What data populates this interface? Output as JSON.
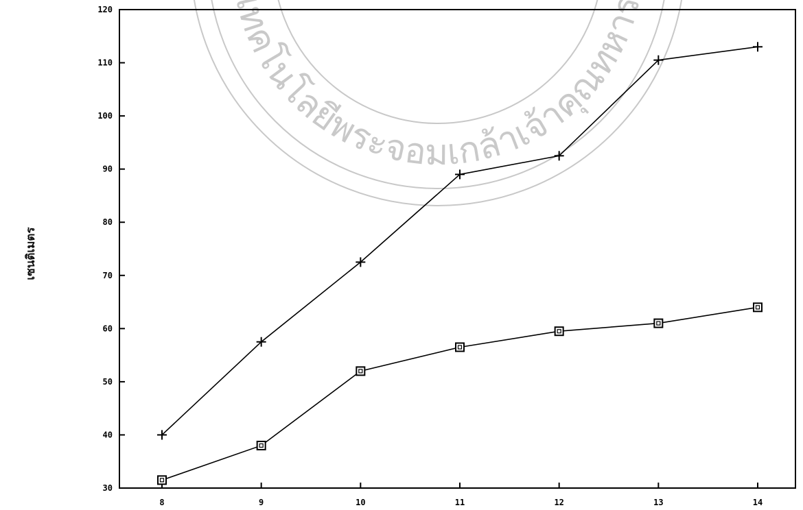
{
  "chart_data": {
    "type": "line",
    "title": "",
    "xlabel": "",
    "ylabel": "เซนติเมตร",
    "x": [
      8,
      9,
      10,
      11,
      12,
      13,
      14
    ],
    "x_tick_labels": [
      "8",
      "9",
      "10",
      "11",
      "12",
      "13",
      "14"
    ],
    "ylim": [
      30,
      120
    ],
    "y_ticks": [
      30,
      40,
      50,
      60,
      70,
      80,
      90,
      100,
      110,
      120
    ],
    "y_tick_labels": [
      "30",
      "40",
      "50",
      "60",
      "70",
      "80",
      "90",
      "100",
      "110",
      "120"
    ],
    "grid": false,
    "legend": "none",
    "series": [
      {
        "marker": "plus",
        "values": [
          40,
          57.5,
          72.5,
          89,
          92.5,
          110.5,
          113
        ]
      },
      {
        "marker": "square",
        "values": [
          31.5,
          38,
          52,
          56.5,
          59.5,
          61,
          64
        ]
      }
    ],
    "watermark": "seal",
    "watermark_text": "เทคโนโลยีพระจอมเกล้าเจ้าคุณทหาร",
    "colors": {
      "line": "#000000",
      "watermark": "#c8c8c8",
      "background": "#ffffff"
    }
  }
}
